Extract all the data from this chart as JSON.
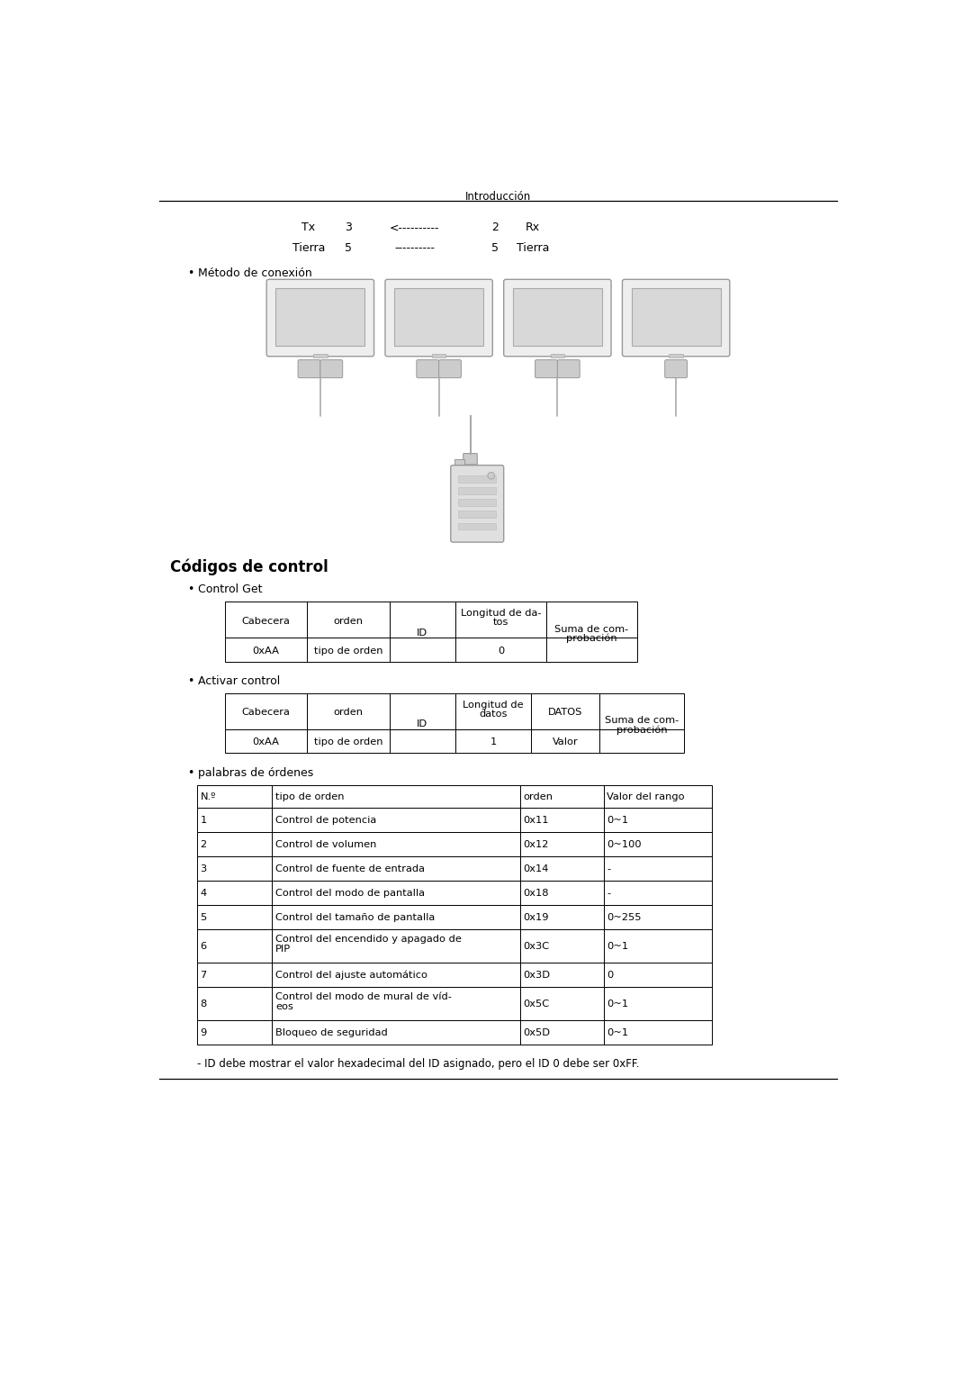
{
  "page_title": "Introducción",
  "section_title": "Códigos de control",
  "bullet1": "Método de conexión",
  "bullet2": "Control Get",
  "bullet3": "Activar control",
  "bullet4": "palabras de órdenes",
  "table1_headers": [
    "Cabecera",
    "orden",
    "ID",
    "Longitud de da-\ntos",
    "Suma de com-\nprobación"
  ],
  "table1_row": [
    "0xAA",
    "tipo de orden",
    "",
    "0",
    ""
  ],
  "table2_headers": [
    "Cabecera",
    "orden",
    "ID",
    "Longitud de\ndatos",
    "DATOS",
    "Suma de com-\nprobación"
  ],
  "table2_row": [
    "0xAA",
    "tipo de orden",
    "",
    "1",
    "Valor",
    ""
  ],
  "table3_headers": [
    "N.º",
    "tipo de orden",
    "orden",
    "Valor del rango"
  ],
  "table3_rows": [
    [
      "1",
      "Control de potencia",
      "0x11",
      "0~1"
    ],
    [
      "2",
      "Control de volumen",
      "0x12",
      "0~100"
    ],
    [
      "3",
      "Control de fuente de entrada",
      "0x14",
      "-"
    ],
    [
      "4",
      "Control del modo de pantalla",
      "0x18",
      "-"
    ],
    [
      "5",
      "Control del tamaño de pantalla",
      "0x19",
      "0~255"
    ],
    [
      "6",
      "Control del encendido y apagado de\nPIP",
      "0x3C",
      "0~1"
    ],
    [
      "7",
      "Control del ajuste automático",
      "0x3D",
      "0"
    ],
    [
      "8",
      "Control del modo de mural de víd-\neos",
      "0x5C",
      "0~1"
    ],
    [
      "9",
      "Bloqueo de seguridad",
      "0x5D",
      "0~1"
    ]
  ],
  "footnote": "- ID debe mostrar el valor hexadecimal del ID asignado, pero el ID 0 debe ser 0xFF.",
  "bg_color": "#ffffff",
  "text_color": "#000000"
}
